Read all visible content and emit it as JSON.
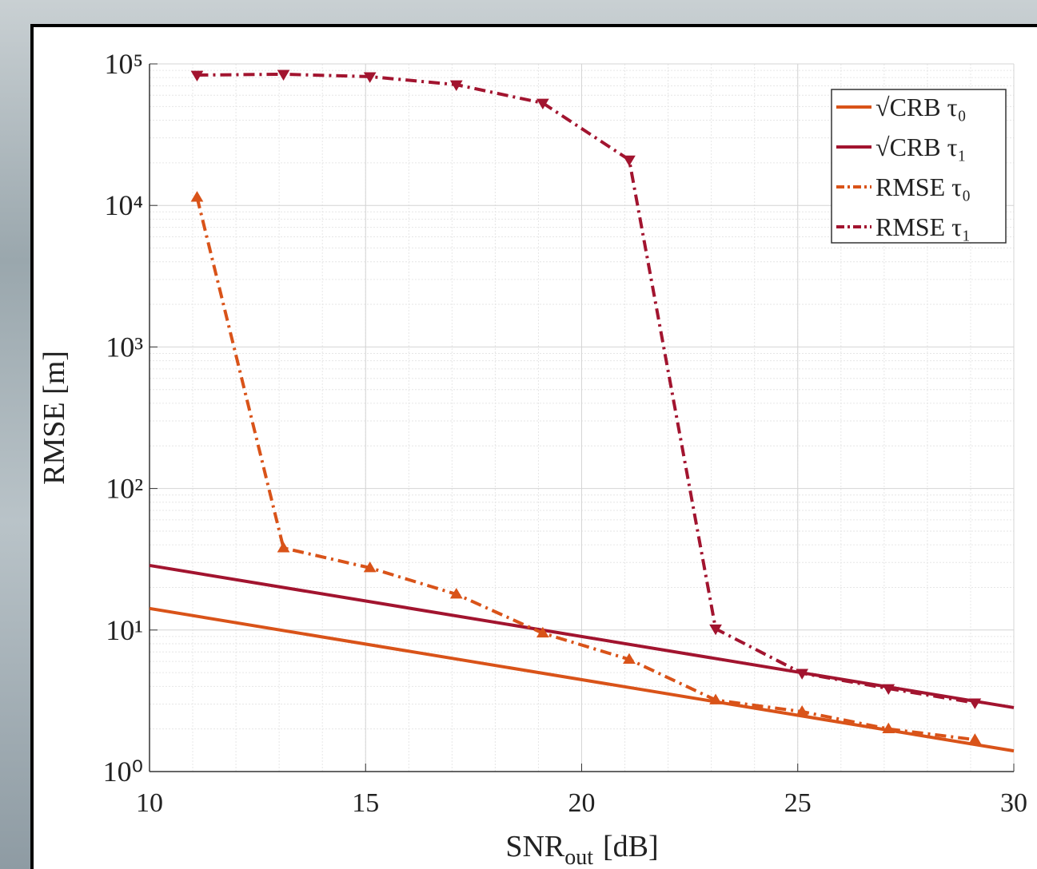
{
  "chart_data": {
    "type": "line",
    "log_y": true,
    "grid": true,
    "legend_position": "upper right",
    "x_label": [
      "SNR",
      "out",
      "[dB]"
    ],
    "y_label": "RMSE [m]",
    "xlim": [
      10,
      30
    ],
    "xticks": [
      10,
      15,
      20,
      25,
      30
    ],
    "ylim": [
      1,
      100000
    ],
    "yticks": [
      {
        "value": 1,
        "label": "10⁰"
      },
      {
        "value": 10,
        "label": "10¹"
      },
      {
        "value": 100,
        "label": "10²"
      },
      {
        "value": 1000,
        "label": "10³"
      },
      {
        "value": 10000,
        "label": "10⁴"
      },
      {
        "value": 100000,
        "label": "10⁵"
      }
    ],
    "series": [
      {
        "name": "√CRB τ₀",
        "color": "#d95319",
        "style": "solid",
        "marker": "none",
        "x": [
          10,
          30
        ],
        "values": [
          14.2,
          1.4
        ]
      },
      {
        "name": "√CRB τ₁",
        "color": "#a2142f",
        "style": "solid",
        "marker": "none",
        "x": [
          10,
          30
        ],
        "values": [
          28.6,
          2.83
        ]
      },
      {
        "name": "RMSE τ₀",
        "color": "#d95319",
        "style": "dashdot",
        "marker": "up",
        "x": [
          11.1,
          13.1,
          15.1,
          17.1,
          19.1,
          21.1,
          23.1,
          25.1,
          27.1,
          29.1
        ],
        "values": [
          11400,
          38,
          27.5,
          17.9,
          9.5,
          6.2,
          3.2,
          2.65,
          2.0,
          1.68
        ]
      },
      {
        "name": "RMSE τ₁",
        "color": "#a2142f",
        "style": "dashdot",
        "marker": "down",
        "x": [
          11.1,
          13.1,
          15.1,
          17.1,
          19.1,
          21.1,
          23.1,
          25.1,
          27.1,
          29.1
        ],
        "values": [
          83400,
          84500,
          81300,
          71300,
          52900,
          21000,
          10.2,
          4.95,
          3.86,
          3.06
        ]
      }
    ]
  }
}
